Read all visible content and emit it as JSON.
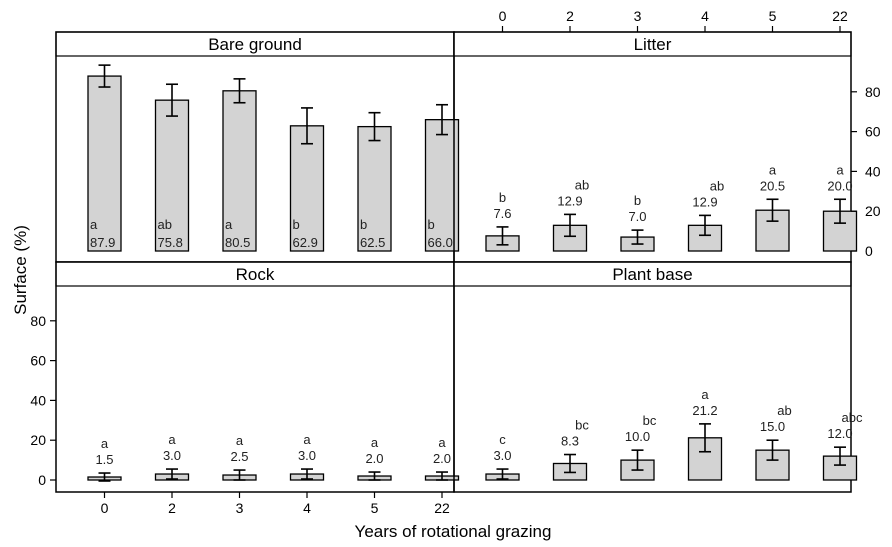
{
  "chart_data": {
    "type": "bar",
    "categories": [
      "0",
      "2",
      "3",
      "4",
      "5",
      "22"
    ],
    "xlabel": "Years of rotational grazing",
    "ylabel": "Surface (%)",
    "ylim": [
      0,
      95
    ],
    "yticks": [
      0,
      20,
      40,
      60,
      80
    ],
    "grid": false,
    "panels": [
      {
        "name": "Bare ground",
        "values": [
          87.9,
          75.8,
          80.5,
          62.9,
          62.5,
          66.0
        ],
        "err": [
          5.5,
          8,
          6,
          9,
          7,
          7.5
        ],
        "value_labels": [
          "87.9",
          "75.8",
          "80.5",
          "62.9",
          "62.5",
          "66.0"
        ],
        "letters": [
          "a",
          "ab",
          "a",
          "b",
          "b",
          "b"
        ],
        "label_position": "inside-bottom"
      },
      {
        "name": "Litter",
        "values": [
          7.6,
          12.9,
          7.0,
          12.9,
          20.5,
          20.0
        ],
        "err": [
          4.5,
          5.5,
          3.5,
          5,
          5.5,
          6
        ],
        "value_labels": [
          "7.6",
          "12.9",
          "7.0",
          "12.9",
          "20.5",
          "20.0"
        ],
        "letters": [
          "b",
          "ab",
          "b",
          "ab",
          "a",
          "a"
        ],
        "label_position": "above"
      },
      {
        "name": "Rock",
        "values": [
          1.5,
          3.0,
          2.5,
          3.0,
          2.0,
          2.0
        ],
        "err": [
          2,
          2.5,
          2.5,
          2.5,
          2,
          2
        ],
        "value_labels": [
          "1.5",
          "3.0",
          "2.5",
          "3.0",
          "2.0",
          "2.0"
        ],
        "letters": [
          "a",
          "a",
          "a",
          "a",
          "a",
          "a"
        ],
        "label_position": "above"
      },
      {
        "name": "Plant base",
        "values": [
          3.0,
          8.3,
          10.0,
          21.2,
          15.0,
          12.0
        ],
        "err": [
          2.5,
          4.5,
          5,
          7,
          5,
          4.5
        ],
        "value_labels": [
          "3.0",
          "8.3",
          "10.0",
          "21.2",
          "15.0",
          "12.0"
        ],
        "letters": [
          "c",
          "bc",
          "bc",
          "a",
          "ab",
          "abc"
        ],
        "label_position": "above"
      }
    ]
  }
}
